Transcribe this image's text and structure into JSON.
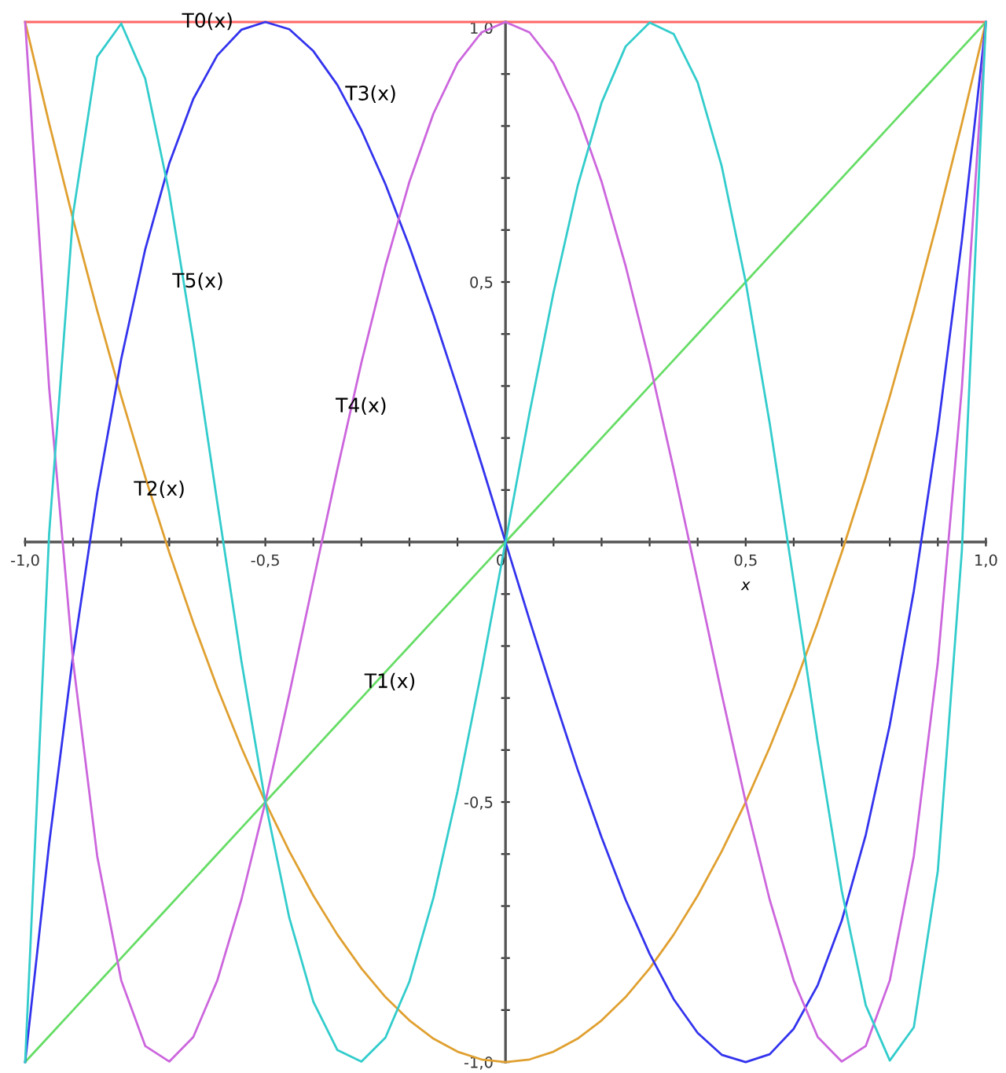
{
  "chart_data": {
    "type": "line",
    "xlabel": "x",
    "x": [
      -1,
      -0.95,
      -0.9,
      -0.85,
      -0.8,
      -0.75,
      -0.7,
      -0.65,
      -0.6,
      -0.55,
      -0.5,
      -0.45,
      -0.4,
      -0.35,
      -0.3,
      -0.25,
      -0.2,
      -0.15,
      -0.1,
      -0.05,
      0,
      0.05,
      0.1,
      0.15,
      0.2,
      0.25,
      0.3,
      0.35,
      0.4,
      0.45,
      0.5,
      0.55,
      0.6,
      0.65,
      0.7,
      0.75,
      0.8,
      0.85,
      0.9,
      0.95,
      1
    ],
    "series": [
      {
        "color": "#ff6666",
        "values": [
          1,
          1,
          1,
          1,
          1,
          1,
          1,
          1,
          1,
          1,
          1,
          1,
          1,
          1,
          1,
          1,
          1,
          1,
          1,
          1,
          1,
          1,
          1,
          1,
          1,
          1,
          1,
          1,
          1,
          1,
          1,
          1,
          1,
          1,
          1,
          1,
          1,
          1,
          1,
          1,
          1
        ]
      },
      {
        "color": "#66dd66",
        "values": [
          -1,
          -0.95,
          -0.9,
          -0.85,
          -0.8,
          -0.75,
          -0.7,
          -0.65,
          -0.6,
          -0.55,
          -0.5,
          -0.45,
          -0.4,
          -0.35,
          -0.3,
          -0.25,
          -0.2,
          -0.15,
          -0.1,
          -0.05,
          0,
          0.05,
          0.1,
          0.15,
          0.2,
          0.25,
          0.3,
          0.35,
          0.4,
          0.45,
          0.5,
          0.55,
          0.6,
          0.65,
          0.7,
          0.75,
          0.8,
          0.85,
          0.9,
          0.95,
          1
        ]
      },
      {
        "color": "#e0a030",
        "values": [
          1,
          0.805,
          0.62,
          0.445,
          0.28,
          0.125,
          -0.02,
          -0.155,
          -0.28,
          -0.395,
          -0.5,
          -0.595,
          -0.68,
          -0.755,
          -0.82,
          -0.875,
          -0.92,
          -0.955,
          -0.98,
          -0.995,
          -1,
          -0.995,
          -0.98,
          -0.955,
          -0.92,
          -0.875,
          -0.82,
          -0.755,
          -0.68,
          -0.595,
          -0.5,
          -0.395,
          -0.28,
          -0.155,
          -0.02,
          0.125,
          0.28,
          0.445,
          0.62,
          0.805,
          1
        ]
      },
      {
        "color": "#3333ee",
        "values": [
          -1,
          -0.58,
          -0.216,
          0.094,
          0.352,
          0.563,
          0.728,
          0.852,
          0.936,
          0.985,
          1,
          0.986,
          0.944,
          0.879,
          0.792,
          0.688,
          0.568,
          0.437,
          0.296,
          0.15,
          0,
          -0.15,
          -0.296,
          -0.437,
          -0.568,
          -0.688,
          -0.792,
          -0.879,
          -0.944,
          -0.986,
          -1,
          -0.985,
          -0.936,
          -0.852,
          -0.728,
          -0.563,
          -0.352,
          -0.094,
          0.216,
          0.58,
          1
        ]
      },
      {
        "color": "#cc66dd",
        "values": [
          1,
          0.296,
          -0.231,
          -0.604,
          -0.843,
          -0.969,
          -0.999,
          -0.952,
          -0.843,
          -0.688,
          -0.5,
          -0.292,
          -0.075,
          0.14,
          0.345,
          0.531,
          0.693,
          0.824,
          0.921,
          0.98,
          1,
          0.98,
          0.921,
          0.824,
          0.693,
          0.531,
          0.345,
          0.14,
          -0.075,
          -0.292,
          -0.5,
          -0.688,
          -0.843,
          -0.952,
          -0.999,
          -0.969,
          -0.843,
          -0.604,
          -0.231,
          0.296,
          1
        ]
      },
      {
        "color": "#33cccc",
        "values": [
          -1,
          0.017,
          0.632,
          0.933,
          0.997,
          0.891,
          0.671,
          0.386,
          0.076,
          -0.228,
          -0.5,
          -0.723,
          -0.884,
          -0.977,
          -0.999,
          -0.953,
          -0.845,
          -0.684,
          -0.48,
          -0.248,
          0,
          0.248,
          0.48,
          0.684,
          0.845,
          0.953,
          0.999,
          0.977,
          0.884,
          0.723,
          0.5,
          0.228,
          -0.076,
          -0.386,
          -0.671,
          -0.891,
          -0.997,
          -0.933,
          -0.632,
          -0.017,
          1
        ]
      }
    ],
    "annotations": [
      "T0(x)",
      "T3(x)",
      "T5(x)",
      "T4(x)",
      "T2(x)",
      "T1(x)"
    ],
    "xlim": [
      -1,
      1
    ],
    "ylim": [
      -1,
      1
    ],
    "xticks": [
      {
        "value": -1,
        "label": "-1,0"
      },
      {
        "value": -0.9,
        "label": null
      },
      {
        "value": -0.8,
        "label": null
      },
      {
        "value": -0.7,
        "label": null
      },
      {
        "value": -0.6,
        "label": null
      },
      {
        "value": -0.5,
        "label": "-0,5"
      },
      {
        "value": -0.4,
        "label": null
      },
      {
        "value": -0.3,
        "label": null
      },
      {
        "value": -0.2,
        "label": null
      },
      {
        "value": -0.1,
        "label": null
      },
      {
        "value": 0,
        "label": "0"
      },
      {
        "value": 0.1,
        "label": null
      },
      {
        "value": 0.2,
        "label": null
      },
      {
        "value": 0.3,
        "label": null
      },
      {
        "value": 0.4,
        "label": null
      },
      {
        "value": 0.5,
        "label": "0,5"
      },
      {
        "value": 0.6,
        "label": null
      },
      {
        "value": 0.7,
        "label": null
      },
      {
        "value": 0.8,
        "label": null
      },
      {
        "value": 0.9,
        "label": null
      },
      {
        "value": 1,
        "label": "1,0"
      }
    ],
    "yticks": [
      {
        "value": -1,
        "label": "-1,0"
      },
      {
        "value": -0.9,
        "label": null
      },
      {
        "value": -0.8,
        "label": null
      },
      {
        "value": -0.7,
        "label": null
      },
      {
        "value": -0.6,
        "label": null
      },
      {
        "value": -0.5,
        "label": "-0,5"
      },
      {
        "value": -0.4,
        "label": null
      },
      {
        "value": -0.3,
        "label": null
      },
      {
        "value": -0.2,
        "label": null
      },
      {
        "value": -0.1,
        "label": null
      },
      {
        "value": 0,
        "label": null
      },
      {
        "value": 0.1,
        "label": null
      },
      {
        "value": 0.2,
        "label": null
      },
      {
        "value": 0.3,
        "label": null
      },
      {
        "value": 0.4,
        "label": null
      },
      {
        "value": 0.5,
        "label": "0,5"
      },
      {
        "value": 0.6,
        "label": null
      },
      {
        "value": 0.7,
        "label": null
      },
      {
        "value": 0.8,
        "label": null
      },
      {
        "value": 0.9,
        "label": null
      },
      {
        "value": 1,
        "label": "1,0"
      }
    ],
    "grid": false,
    "legend": false,
    "marker": "none",
    "line_style": "solid"
  }
}
